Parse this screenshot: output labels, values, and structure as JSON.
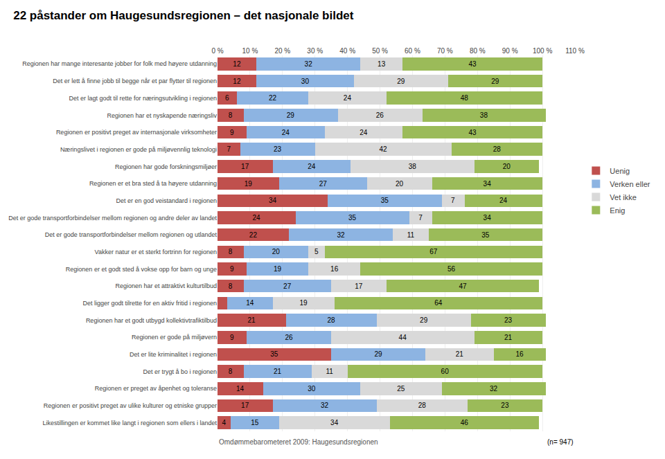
{
  "chart_data": {
    "type": "bar",
    "title": "22 påstander om Haugesundsregionen – det nasjonale bildet",
    "orientation": "horizontal",
    "stacked": true,
    "data_labels": true,
    "grid": true,
    "legend": "right",
    "categories": [
      "Regionen har mange interesante jobber for folk med høyere utdanning",
      "Det er lett å finne jobb til begge når et par flytter til regionen",
      "Det er lagt godt til rette for næringsutvikling i regionen",
      "Regionen har et nyskapende næringsliv",
      "Regionen er positivt preget av internasjonale virksomheter",
      "Næringslivet i regionen er gode på miljøvennlig teknologi",
      "Regionen har gode forskningsmiljøer",
      "Regionen er et bra sted å ta høyere utdanning",
      "Det er en god veistandard i regionen",
      "Det er gode transportforbindelser mellom regionen og andre deler av landet",
      "Det er gode transportforbindelser mellom regionen og utlandet",
      "Vakker natur er et sterkt fortrinn for regionen",
      "Regionen er et godt sted å vokse opp for barn og unge",
      "Regionen har et attraktivt kulturtilbud",
      "Det ligger godt tilrette for en aktiv fritid i regionen",
      "Regionen har et godt utbygd kollektivtrafiktilbud",
      "Regionen er gode på miljøvern",
      "Det er lite kriminalitet i regionen",
      "Det er trygt å bo i regionen",
      "Regionen er preget av åpenhet og toleranse",
      "Regionen er positivt preget av ulike kulturer og etniske grupper",
      "Likestillingen er kommet like langt i regionen som ellers i landet"
    ],
    "series": [
      {
        "name": "Uenig",
        "color": "#c0504d",
        "values": [
          12,
          12,
          6,
          8,
          9,
          7,
          17,
          19,
          34,
          24,
          22,
          8,
          9,
          8,
          3,
          21,
          9,
          35,
          8,
          14,
          17,
          4
        ],
        "value_labels": [
          "12",
          "12",
          "6",
          "8",
          "9",
          "7",
          "17",
          "19",
          "34",
          "24",
          "22",
          "8",
          "9",
          "8",
          null,
          "21",
          "9",
          "35",
          "8",
          "14",
          "17",
          "4"
        ]
      },
      {
        "name": "Verken eller",
        "color": "#8db4e2",
        "values": [
          32,
          30,
          22,
          29,
          24,
          23,
          24,
          27,
          35,
          35,
          32,
          20,
          19,
          27,
          14,
          28,
          26,
          29,
          21,
          30,
          32,
          15
        ]
      },
      {
        "name": "Vet ikke",
        "color": "#d9d9d9",
        "values": [
          13,
          29,
          24,
          26,
          24,
          42,
          38,
          20,
          7,
          7,
          11,
          5,
          16,
          17,
          19,
          29,
          44,
          21,
          11,
          25,
          28,
          34
        ]
      },
      {
        "name": "Enig",
        "color": "#9bbb59",
        "values": [
          43,
          29,
          48,
          38,
          43,
          28,
          20,
          34,
          24,
          34,
          35,
          67,
          56,
          47,
          64,
          23,
          21,
          16,
          60,
          32,
          23,
          46
        ]
      }
    ],
    "xlim": [
      0,
      110
    ],
    "xticks": [
      {
        "value": 0,
        "label": "0 %"
      },
      {
        "value": 10,
        "label": "10 %"
      },
      {
        "value": 20,
        "label": "20 %"
      },
      {
        "value": 30,
        "label": "30 %"
      },
      {
        "value": 40,
        "label": "40 %"
      },
      {
        "value": 50,
        "label": "50 %"
      },
      {
        "value": 60,
        "label": "60 %"
      },
      {
        "value": 70,
        "label": "70 %"
      },
      {
        "value": 80,
        "label": "80 %"
      },
      {
        "value": 90,
        "label": "90 %"
      },
      {
        "value": 100,
        "label": "100 %"
      },
      {
        "value": 110,
        "label": "110 %"
      }
    ],
    "annotations": [
      "Omdømmebarometeret 2009: Haugesundsregionen",
      "(n= 947)"
    ]
  }
}
